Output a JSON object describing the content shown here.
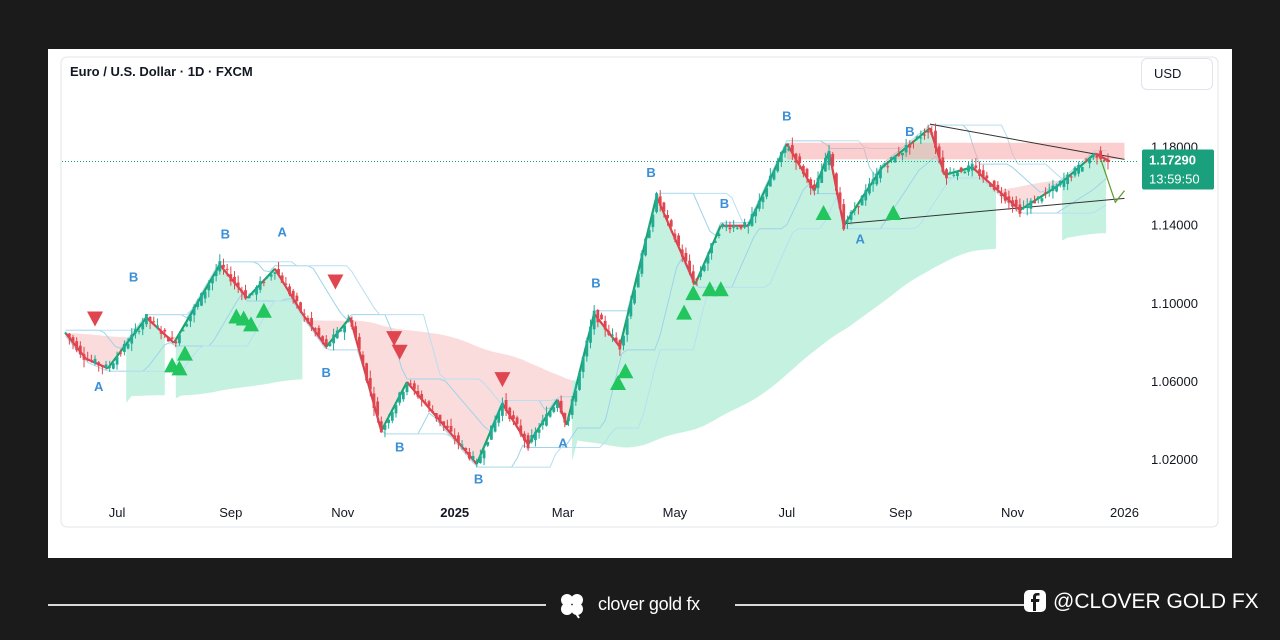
{
  "chart_data": {
    "type": "candlestick",
    "title": "Euro / U.S. Dollar · 1D · FXCM",
    "currency": "USD",
    "x_tick_labels": [
      "Jul",
      "Sep",
      "Nov",
      "2025",
      "Mar",
      "May",
      "Jul",
      "Sep",
      "Nov",
      "2026"
    ],
    "y_tick_labels": [
      "1.18000",
      "1.14000",
      "1.10000",
      "1.06000",
      "1.02000"
    ],
    "y_ticks": [
      1.18,
      1.14,
      1.1,
      1.06,
      1.02
    ],
    "ylim": [
      0.995,
      1.21
    ],
    "last_price": "1.17290",
    "countdown": "13:59:50",
    "colors": {
      "up": "#22ab94",
      "down": "#e0464f",
      "buy_marker": "#22c55e",
      "sell_marker": "#e0464f",
      "wave_label": "#3b8fd6",
      "price_tag": "#1aa07c"
    },
    "price_path": [
      [
        "2024-06-03",
        1.085
      ],
      [
        "2024-06-14",
        1.072
      ],
      [
        "2024-06-26",
        1.067
      ],
      [
        "2024-07-17",
        1.093
      ],
      [
        "2024-08-01",
        1.08
      ],
      [
        "2024-08-26",
        1.12
      ],
      [
        "2024-09-10",
        1.103
      ],
      [
        "2024-09-25",
        1.118
      ],
      [
        "2024-10-10",
        1.095
      ],
      [
        "2024-10-23",
        1.078
      ],
      [
        "2024-11-05",
        1.093
      ],
      [
        "2024-11-22",
        1.035
      ],
      [
        "2024-12-06",
        1.06
      ],
      [
        "2025-01-13",
        1.018
      ],
      [
        "2025-01-27",
        1.049
      ],
      [
        "2025-02-10",
        1.028
      ],
      [
        "2025-02-26",
        1.051
      ],
      [
        "2025-03-03",
        1.038
      ],
      [
        "2025-03-18",
        1.095
      ],
      [
        "2025-04-01",
        1.078
      ],
      [
        "2025-04-21",
        1.155
      ],
      [
        "2025-05-12",
        1.11
      ],
      [
        "2025-05-26",
        1.14
      ],
      [
        "2025-06-10",
        1.14
      ],
      [
        "2025-07-01",
        1.182
      ],
      [
        "2025-07-16",
        1.158
      ],
      [
        "2025-07-24",
        1.178
      ],
      [
        "2025-08-01",
        1.14
      ],
      [
        "2025-08-22",
        1.17
      ],
      [
        "2025-09-17",
        1.19
      ],
      [
        "2025-09-25",
        1.166
      ],
      [
        "2025-10-10",
        1.17
      ],
      [
        "2025-11-05",
        1.148
      ],
      [
        "2025-11-25",
        1.16
      ],
      [
        "2025-12-16",
        1.177
      ],
      [
        "2025-12-24",
        1.173
      ]
    ],
    "wave_labels": [
      {
        "text": "B",
        "date": "2024-07-10",
        "price": 1.1115
      },
      {
        "text": "A",
        "date": "2024-06-21",
        "price": 1.0555
      },
      {
        "text": "B",
        "date": "2024-08-29",
        "price": 1.1335
      },
      {
        "text": "A",
        "date": "2024-09-29",
        "price": 1.1345
      },
      {
        "text": "B",
        "date": "2024-10-23",
        "price": 1.0625
      },
      {
        "text": "B",
        "date": "2024-12-02",
        "price": 1.0245
      },
      {
        "text": "B",
        "date": "2025-01-14",
        "price": 1.008
      },
      {
        "text": "A",
        "date": "2025-03-01",
        "price": 1.0265
      },
      {
        "text": "B",
        "date": "2025-03-19",
        "price": 1.1085
      },
      {
        "text": "B",
        "date": "2025-04-18",
        "price": 1.165
      },
      {
        "text": "B",
        "date": "2025-05-28",
        "price": 1.149
      },
      {
        "text": "B",
        "date": "2025-07-01",
        "price": 1.194
      },
      {
        "text": "A",
        "date": "2025-08-10",
        "price": 1.131
      },
      {
        "text": "B",
        "date": "2025-09-06",
        "price": 1.186
      }
    ],
    "buy_markers": [
      {
        "date": "2024-07-31",
        "price": 1.068
      },
      {
        "date": "2024-08-04",
        "price": 1.0665
      },
      {
        "date": "2024-08-07",
        "price": 1.074
      },
      {
        "date": "2024-09-04",
        "price": 1.093
      },
      {
        "date": "2024-09-08",
        "price": 1.092
      },
      {
        "date": "2024-09-12",
        "price": 1.089
      },
      {
        "date": "2024-09-19",
        "price": 1.096
      },
      {
        "date": "2025-03-31",
        "price": 1.059
      },
      {
        "date": "2025-04-04",
        "price": 1.065
      },
      {
        "date": "2025-05-06",
        "price": 1.095
      },
      {
        "date": "2025-05-11",
        "price": 1.105
      },
      {
        "date": "2025-05-20",
        "price": 1.107
      },
      {
        "date": "2025-05-26",
        "price": 1.107
      },
      {
        "date": "2025-07-21",
        "price": 1.146
      },
      {
        "date": "2025-08-28",
        "price": 1.146
      }
    ],
    "sell_markers": [
      {
        "date": "2024-06-19",
        "price": 1.093
      },
      {
        "date": "2024-10-28",
        "price": 1.112
      },
      {
        "date": "2024-11-29",
        "price": 1.083
      },
      {
        "date": "2024-12-02",
        "price": 1.076
      },
      {
        "date": "2025-01-27",
        "price": 1.062
      }
    ],
    "annotations": {
      "resistance_band": [
        1.174,
        1.1825
      ],
      "triangle_upper": [
        [
          "2025-09-17",
          1.192
        ],
        [
          "2026-01-01",
          1.174
        ]
      ],
      "triangle_lower": [
        [
          "2025-08-01",
          1.141
        ],
        [
          "2026-01-01",
          1.154
        ]
      ]
    }
  },
  "footer": {
    "brand": "clover gold fx",
    "social_handle": "@CLOVER GOLD FX"
  }
}
